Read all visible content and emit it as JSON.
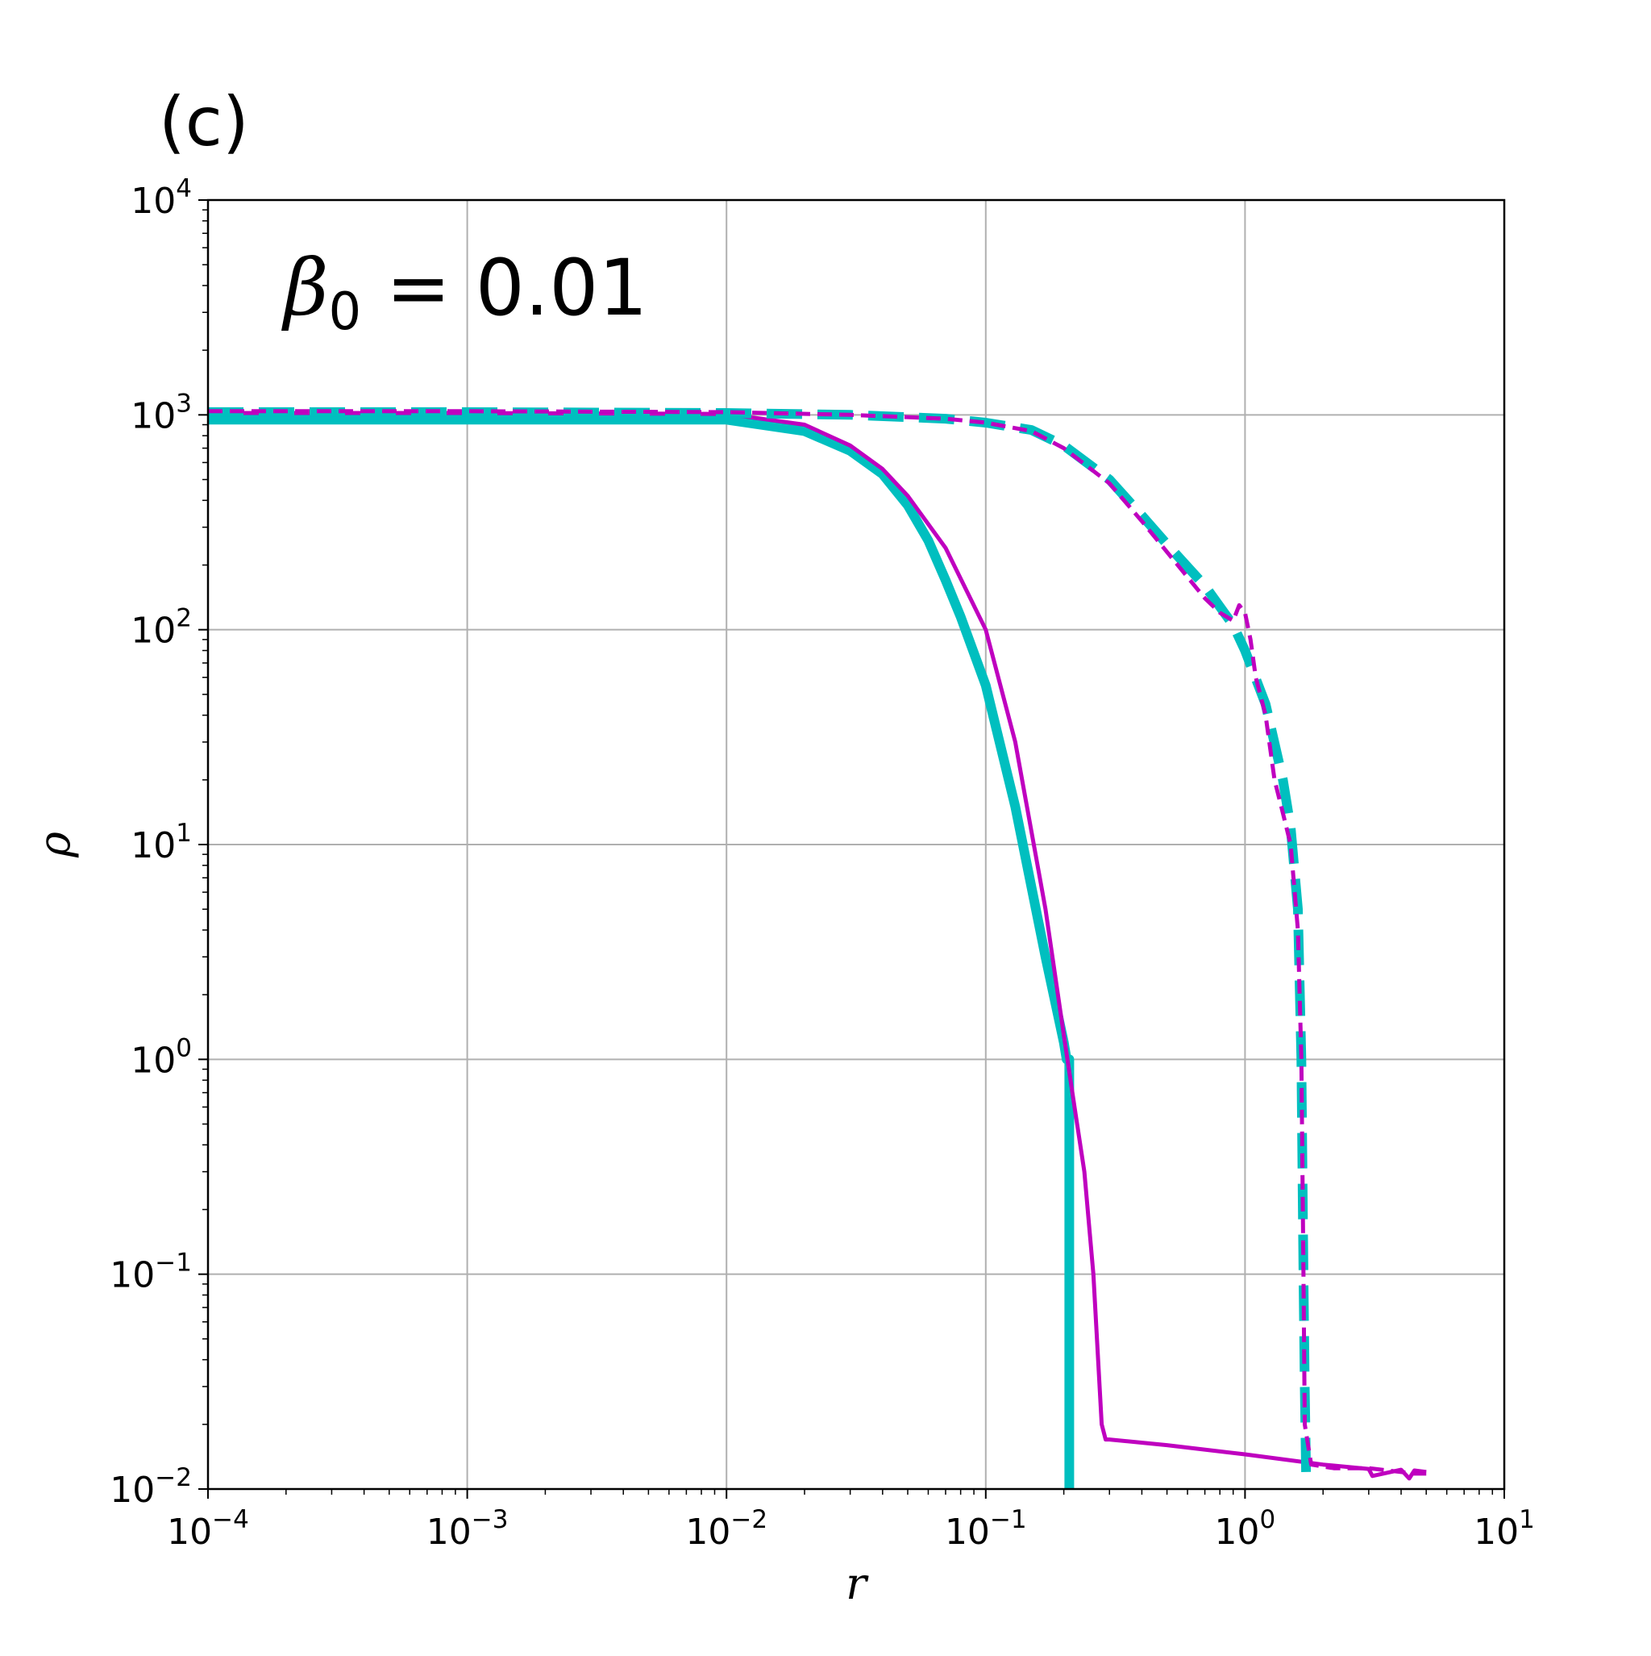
{
  "chart_data": {
    "type": "line",
    "panel_label": "(c)",
    "annotation": {
      "symbol": "β",
      "subscript": "0",
      "text": " = 0.01"
    },
    "xlabel": "r",
    "ylabel": "ρ",
    "xscale": "log",
    "yscale": "log",
    "xlim": [
      0.0001,
      10
    ],
    "ylim": [
      0.01,
      10000
    ],
    "grid": true,
    "xticks": [
      {
        "base": "10",
        "exp": "−4",
        "value": 0.0001
      },
      {
        "base": "10",
        "exp": "−3",
        "value": 0.001
      },
      {
        "base": "10",
        "exp": "−2",
        "value": 0.01
      },
      {
        "base": "10",
        "exp": "−1",
        "value": 0.1
      },
      {
        "base": "10",
        "exp": "0",
        "value": 1
      },
      {
        "base": "10",
        "exp": "1",
        "value": 10
      }
    ],
    "yticks": [
      {
        "base": "10",
        "exp": "−2",
        "value": 0.01
      },
      {
        "base": "10",
        "exp": "−1",
        "value": 0.1
      },
      {
        "base": "10",
        "exp": "0",
        "value": 1
      },
      {
        "base": "10",
        "exp": "1",
        "value": 10
      },
      {
        "base": "10",
        "exp": "2",
        "value": 100
      },
      {
        "base": "10",
        "exp": "3",
        "value": 1000
      },
      {
        "base": "10",
        "exp": "4",
        "value": 10000
      }
    ],
    "series": [
      {
        "color": "#00bfbf",
        "style": "solid",
        "width": "thick",
        "x": [
          0.0001,
          0.001,
          0.01,
          0.02,
          0.03,
          0.04,
          0.05,
          0.06,
          0.07,
          0.08,
          0.1,
          0.13,
          0.17,
          0.2,
          0.205,
          0.21,
          0.21
        ],
        "y": [
          950,
          950,
          950,
          840,
          680,
          530,
          380,
          260,
          170,
          115,
          55,
          15,
          3,
          1.2,
          1.0,
          1.0,
          0.01
        ]
      },
      {
        "color": "#bf00bf",
        "style": "solid",
        "width": "thin",
        "x": [
          0.0001,
          0.001,
          0.01,
          0.02,
          0.03,
          0.04,
          0.05,
          0.07,
          0.1,
          0.13,
          0.17,
          0.2,
          0.22,
          0.24,
          0.26,
          0.28,
          0.29,
          0.3,
          0.5,
          1.0,
          2.0,
          3.0,
          3.1,
          4.0,
          4.3,
          4.5,
          5.0
        ],
        "y": [
          1020,
          1020,
          1010,
          900,
          720,
          560,
          420,
          240,
          100,
          30,
          5,
          1.3,
          0.6,
          0.3,
          0.1,
          0.02,
          0.017,
          0.017,
          0.016,
          0.0145,
          0.013,
          0.0124,
          0.0115,
          0.0123,
          0.0112,
          0.0122,
          0.012
        ]
      },
      {
        "color": "#00bfbf",
        "style": "dashed",
        "width": "thick",
        "x": [
          0.0001,
          0.001,
          0.01,
          0.03,
          0.07,
          0.1,
          0.15,
          0.2,
          0.3,
          0.4,
          0.5,
          0.7,
          0.9,
          1.0,
          1.2,
          1.4,
          1.5,
          1.6,
          1.65,
          1.68,
          1.7,
          1.72
        ],
        "y": [
          1030,
          1030,
          1020,
          1000,
          960,
          920,
          850,
          720,
          500,
          340,
          250,
          160,
          105,
          80,
          45,
          20,
          12,
          5,
          1,
          0.1,
          0.03,
          0.012
        ]
      },
      {
        "color": "#bf00bf",
        "style": "dashed",
        "width": "thin",
        "x": [
          0.0001,
          0.001,
          0.01,
          0.03,
          0.07,
          0.1,
          0.15,
          0.2,
          0.3,
          0.4,
          0.5,
          0.7,
          0.8,
          0.9,
          0.95,
          1.0,
          1.05,
          1.1,
          1.2,
          1.3,
          1.4,
          1.5,
          1.6,
          1.65,
          1.68,
          1.7,
          1.8,
          2.2,
          3.0,
          4.0,
          4.5,
          5.0
        ],
        "y": [
          1040,
          1040,
          1030,
          1000,
          960,
          920,
          840,
          700,
          480,
          320,
          230,
          140,
          120,
          110,
          130,
          120,
          90,
          60,
          40,
          20,
          14,
          10,
          4,
          1,
          0.1,
          0.02,
          0.013,
          0.0125,
          0.0125,
          0.012,
          0.0118,
          0.0118
        ]
      }
    ]
  }
}
